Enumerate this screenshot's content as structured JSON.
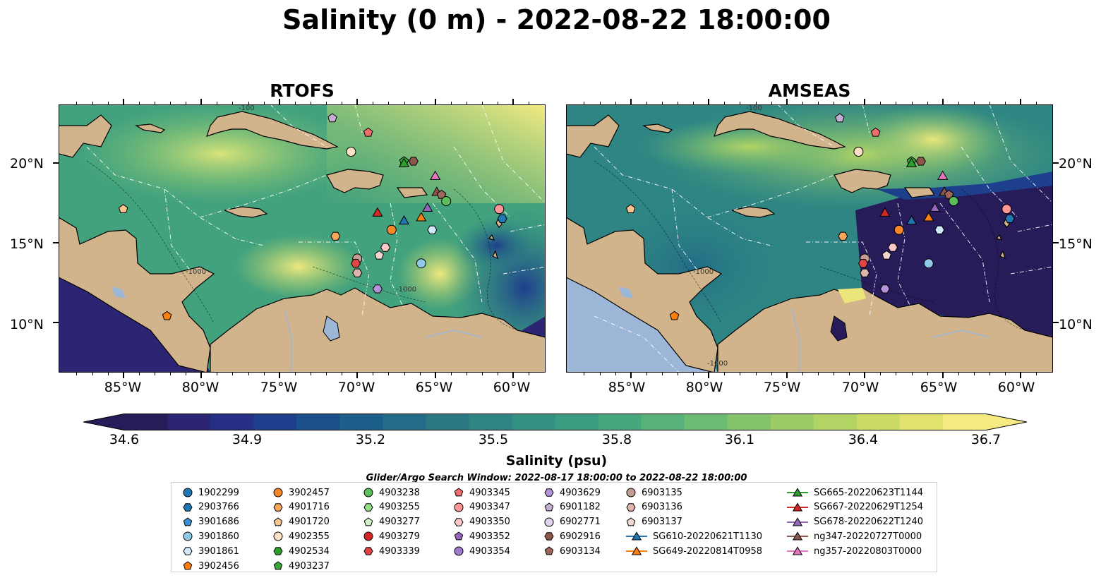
{
  "title": "Salinity (0 m) - 2022-08-22 18:00:00",
  "panels": [
    {
      "title": "RTOFS"
    },
    {
      "title": "AMSEAS"
    }
  ],
  "axes": {
    "lat_ticks": [
      "20°N",
      "15°N",
      "10°N"
    ],
    "lon_ticks": [
      "85°W",
      "80°W",
      "75°W",
      "70°W",
      "65°W",
      "60°W"
    ]
  },
  "contour_labels": [
    "-100",
    "-1000",
    "-1000",
    "-1000"
  ],
  "colorbar": {
    "label": "Salinity (psu)",
    "ticks": [
      "34.6",
      "34.9",
      "35.2",
      "35.5",
      "35.8",
      "36.1",
      "36.4",
      "36.7"
    ],
    "range": [
      34.6,
      36.7
    ],
    "colors": [
      "#271b59",
      "#2b2574",
      "#252f86",
      "#1d3f8c",
      "#1b4f8c",
      "#1b5f8a",
      "#226c87",
      "#297884",
      "#2e8583",
      "#339182",
      "#3a9c80",
      "#47a77c",
      "#58b178",
      "#6bbb72",
      "#82c36c",
      "#9acb67",
      "#b3d364",
      "#cbdb66",
      "#e2e36f",
      "#f5eb82"
    ],
    "extend": "both"
  },
  "search_window": "Glider/Argo Search Window: 2022-08-17 18:00:00 to 2022-08-22 18:00:00",
  "colors": {
    "land": "#d2b48c",
    "land_water": "#9cb6d7",
    "ocean_mid": "#3a9c80",
    "ocean_high": "#f0e68c",
    "ocean_low": "#271b59",
    "eez_lines": "#ffffff"
  },
  "legend": {
    "columns": [
      [
        {
          "label": "1902299",
          "marker": "circle",
          "color": "#1f77b4"
        },
        {
          "label": "2903766",
          "marker": "hexagon",
          "color": "#1f77b4"
        },
        {
          "label": "3901686",
          "marker": "pentagon",
          "color": "#3b8fd6"
        },
        {
          "label": "3901860",
          "marker": "circle",
          "color": "#8ecae6"
        },
        {
          "label": "3901861",
          "marker": "hexagon",
          "color": "#cfe9f8"
        },
        {
          "label": "3902456",
          "marker": "pentagon",
          "color": "#ff7f0e"
        }
      ],
      [
        {
          "label": "3902457",
          "marker": "circle",
          "color": "#f5862a"
        },
        {
          "label": "4901716",
          "marker": "hexagon",
          "color": "#f8a65c"
        },
        {
          "label": "4901720",
          "marker": "pentagon",
          "color": "#fbc48f"
        },
        {
          "label": "4902355",
          "marker": "circle",
          "color": "#fde2c6"
        },
        {
          "label": "4902534",
          "marker": "hexagon",
          "color": "#2ca02c"
        },
        {
          "label": "4903237",
          "marker": "pentagon",
          "color": "#3aa63a"
        }
      ],
      [
        {
          "label": "4903238",
          "marker": "circle",
          "color": "#5cbf5c"
        },
        {
          "label": "4903255",
          "marker": "hexagon",
          "color": "#98df8a"
        },
        {
          "label": "4903277",
          "marker": "pentagon",
          "color": "#d2f2c8"
        },
        {
          "label": "4903279",
          "marker": "circle",
          "color": "#d62728"
        },
        {
          "label": "4903339",
          "marker": "hexagon",
          "color": "#e04445"
        }
      ],
      [
        {
          "label": "4903345",
          "marker": "pentagon",
          "color": "#ef6f6f"
        },
        {
          "label": "4903347",
          "marker": "circle",
          "color": "#ff9896"
        },
        {
          "label": "4903350",
          "marker": "hexagon",
          "color": "#fdc8c6"
        },
        {
          "label": "4903352",
          "marker": "pentagon",
          "color": "#9467bd"
        },
        {
          "label": "4903354",
          "marker": "circle",
          "color": "#a27ad0"
        }
      ],
      [
        {
          "label": "4903629",
          "marker": "hexagon",
          "color": "#b592dc"
        },
        {
          "label": "6901182",
          "marker": "pentagon",
          "color": "#c5b0d5"
        },
        {
          "label": "6902771",
          "marker": "circle",
          "color": "#e2d3ef"
        },
        {
          "label": "6902916",
          "marker": "hexagon",
          "color": "#8c564b"
        },
        {
          "label": "6903134",
          "marker": "pentagon",
          "color": "#a0675a"
        }
      ],
      [
        {
          "label": "6903135",
          "marker": "circle",
          "color": "#c49c94"
        },
        {
          "label": "6903136",
          "marker": "hexagon",
          "color": "#e0b5ab"
        },
        {
          "label": "6903137",
          "marker": "pentagon",
          "color": "#f3d6cf"
        },
        {
          "label": "SG610-20220621T1130",
          "marker": "triangle-line",
          "color": "#1f77b4"
        },
        {
          "label": "SG649-20220814T0958",
          "marker": "triangle-line",
          "color": "#ff7f0e"
        }
      ],
      [
        {
          "label": "SG665-20220623T1144",
          "marker": "triangle-line",
          "color": "#2ca02c"
        },
        {
          "label": "SG667-20220629T1254",
          "marker": "triangle-line",
          "color": "#d62728"
        },
        {
          "label": "SG678-20220622T1240",
          "marker": "triangle-line",
          "color": "#9467bd"
        },
        {
          "label": "ng347-20220727T0000",
          "marker": "triangle-line",
          "color": "#8c564b"
        },
        {
          "label": "ng357-20220803T0000",
          "marker": "triangle-line",
          "color": "#e377c2"
        }
      ]
    ]
  },
  "observations": [
    {
      "id": "6901182",
      "lon": -71.6,
      "lat": 22.8
    },
    {
      "id": "4903345",
      "lon": -69.3,
      "lat": 21.9
    },
    {
      "id": "4902355",
      "lon": -70.4,
      "lat": 20.7
    },
    {
      "id": "4903237",
      "lon": -67.0,
      "lat": 20.1
    },
    {
      "id": "6902916",
      "lon": -66.4,
      "lat": 20.1
    },
    {
      "id": "SG665-20220623T1144",
      "lon": -67.0,
      "lat": 20.0
    },
    {
      "id": "ng357-20220803T0000",
      "lon": -65.0,
      "lat": 19.2
    },
    {
      "id": "ng347-20220727T0000",
      "lon": -64.9,
      "lat": 18.2
    },
    {
      "id": "6903134",
      "lon": -64.6,
      "lat": 18.0
    },
    {
      "id": "4903238",
      "lon": -64.3,
      "lat": 17.6
    },
    {
      "id": "SG678-20220622T1240",
      "lon": -65.5,
      "lat": 17.2
    },
    {
      "id": "SG667-20220629T1254",
      "lon": -68.7,
      "lat": 16.9
    },
    {
      "id": "SG610-20220621T1130",
      "lon": -67.0,
      "lat": 16.4
    },
    {
      "id": "SG649-20220814T0958",
      "lon": -65.9,
      "lat": 16.6
    },
    {
      "id": "3902457",
      "lon": -67.8,
      "lat": 15.8
    },
    {
      "id": "3901861",
      "lon": -65.2,
      "lat": 15.8
    },
    {
      "id": "4903347",
      "lon": -60.9,
      "lat": 17.1
    },
    {
      "id": "2903766",
      "lon": -60.7,
      "lat": 16.5
    },
    {
      "id": "4901720",
      "lon": -85.0,
      "lat": 17.1
    },
    {
      "id": "4901716",
      "lon": -71.4,
      "lat": 15.4
    },
    {
      "id": "4903350",
      "lon": -68.2,
      "lat": 14.7
    },
    {
      "id": "6903137",
      "lon": -68.6,
      "lat": 14.2
    },
    {
      "id": "6903135",
      "lon": -70.0,
      "lat": 14.0
    },
    {
      "id": "4903339",
      "lon": -70.1,
      "lat": 13.7
    },
    {
      "id": "3901860",
      "lon": -65.9,
      "lat": 13.7
    },
    {
      "id": "6903136",
      "lon": -70.0,
      "lat": 13.1
    },
    {
      "id": "4903629",
      "lon": -68.7,
      "lat": 12.1
    },
    {
      "id": "3902456",
      "lon": -82.2,
      "lat": 10.4
    }
  ]
}
